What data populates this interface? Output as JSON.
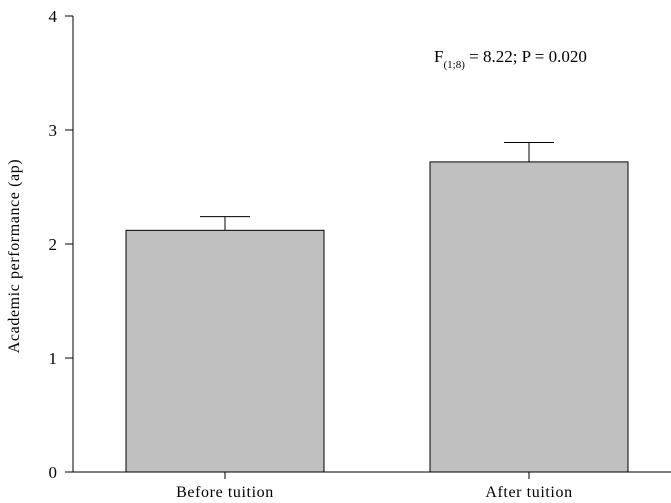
{
  "chart_data": {
    "type": "bar",
    "categories": [
      "Before tuition",
      "After tuition"
    ],
    "values": [
      2.12,
      2.72
    ],
    "error_bars": [
      0.12,
      0.17
    ],
    "title": "",
    "xlabel": "",
    "ylabel": "Academic performance (ap)",
    "ylim": [
      0,
      4
    ],
    "yticks": [
      "0",
      "1",
      "2",
      "3",
      "4"
    ],
    "grid": false,
    "annotation": {
      "prefix": "F",
      "subscript": "(1;8)",
      "rest": " = 8.22; P = 0.020"
    },
    "colors": {
      "bar_fill": "#c0c0c0",
      "bar_stroke": "#000000"
    }
  }
}
